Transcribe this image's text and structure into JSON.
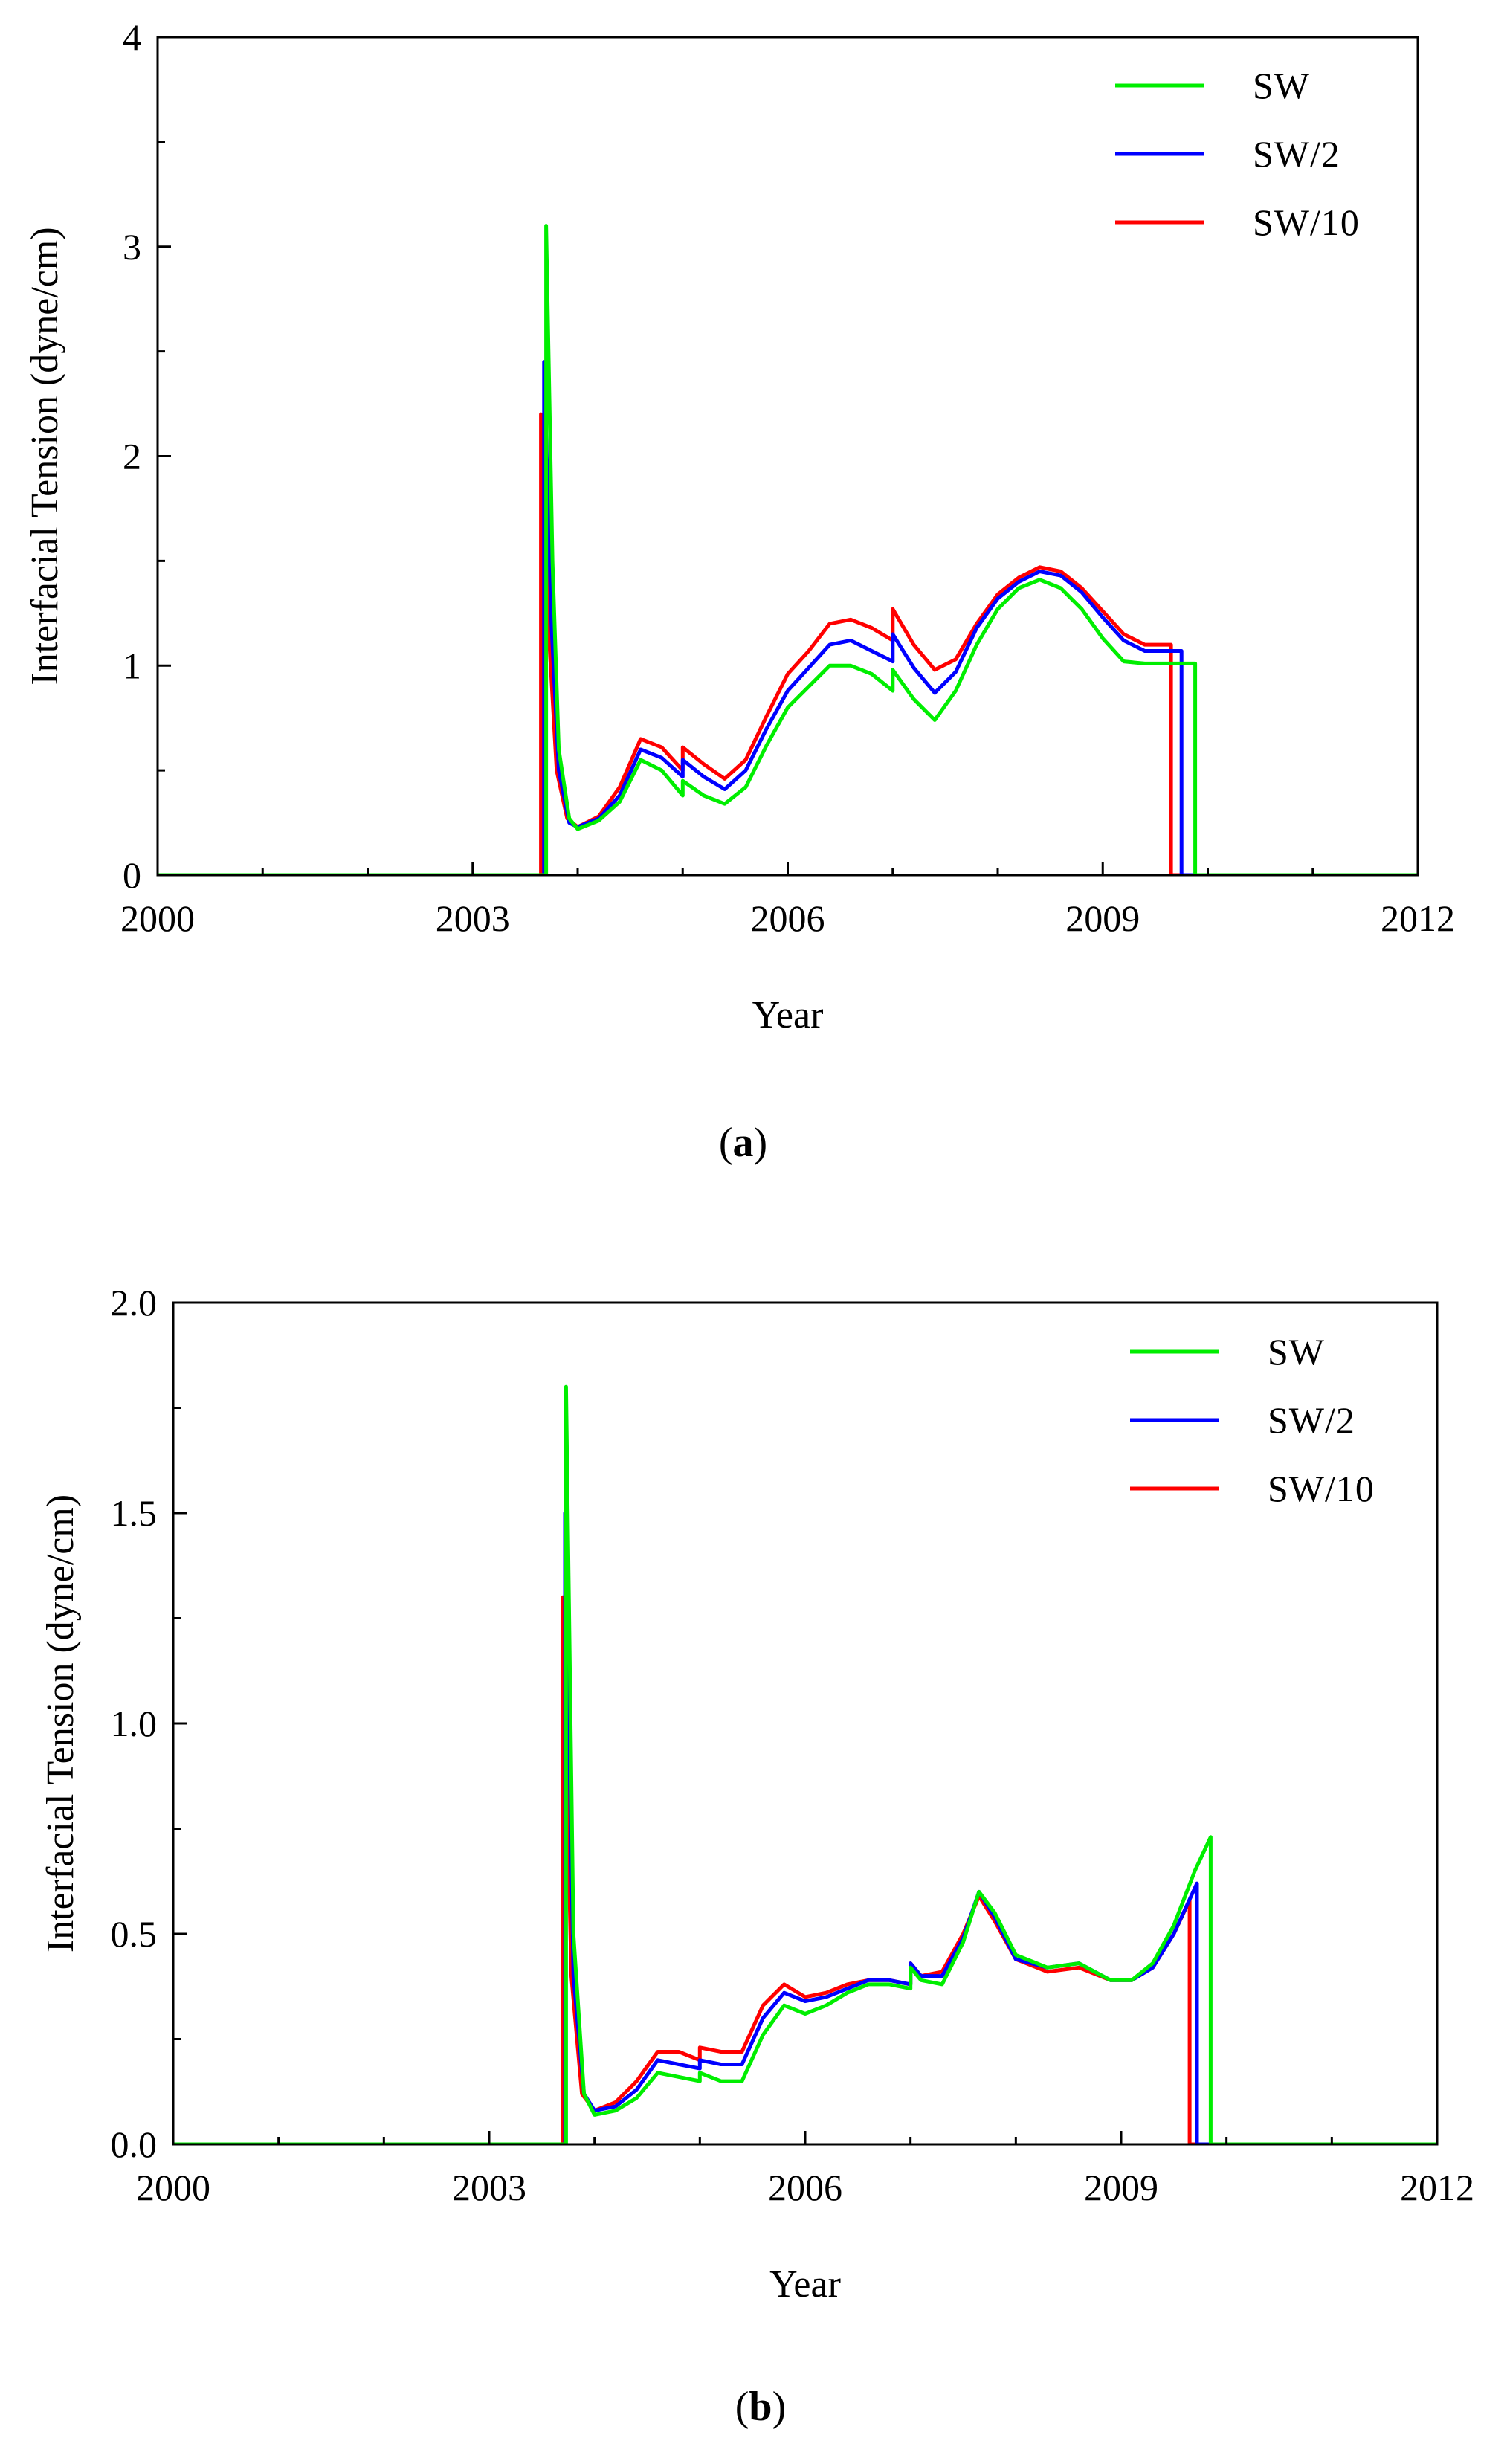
{
  "chart_data": [
    {
      "type": "line",
      "panel_id": "a",
      "panel_label": "(a)",
      "xlabel": "Year",
      "ylabel": "Interfacial Tension (dyne/cm)",
      "xlim": [
        2000,
        2012
      ],
      "ylim": [
        0,
        4
      ],
      "xticks": [
        2000,
        2003,
        2006,
        2009,
        2012
      ],
      "xtick_labels": [
        "2000",
        "2003",
        "2006",
        "2009",
        "2012"
      ],
      "yticks": [
        0,
        1,
        2,
        3,
        4
      ],
      "ytick_labels": [
        "0",
        "1",
        "2",
        "3",
        "4"
      ],
      "legend_position": "top-right",
      "series": [
        {
          "name": "SW/10",
          "color": "#ff0000",
          "points": [
            [
              2000.0,
              0.0
            ],
            [
              2003.65,
              0.0
            ],
            [
              2003.65,
              2.2
            ],
            [
              2003.72,
              1.2
            ],
            [
              2003.8,
              0.5
            ],
            [
              2003.9,
              0.27
            ],
            [
              2004.0,
              0.23
            ],
            [
              2004.2,
              0.28
            ],
            [
              2004.4,
              0.42
            ],
            [
              2004.6,
              0.65
            ],
            [
              2004.8,
              0.61
            ],
            [
              2005.0,
              0.5
            ],
            [
              2005.0,
              0.61
            ],
            [
              2005.2,
              0.53
            ],
            [
              2005.4,
              0.46
            ],
            [
              2005.6,
              0.55
            ],
            [
              2005.8,
              0.76
            ],
            [
              2006.0,
              0.96
            ],
            [
              2006.2,
              1.07
            ],
            [
              2006.4,
              1.2
            ],
            [
              2006.6,
              1.22
            ],
            [
              2006.8,
              1.18
            ],
            [
              2007.0,
              1.12
            ],
            [
              2007.0,
              1.27
            ],
            [
              2007.2,
              1.1
            ],
            [
              2007.4,
              0.98
            ],
            [
              2007.6,
              1.03
            ],
            [
              2007.8,
              1.2
            ],
            [
              2008.0,
              1.34
            ],
            [
              2008.2,
              1.42
            ],
            [
              2008.4,
              1.47
            ],
            [
              2008.6,
              1.45
            ],
            [
              2008.8,
              1.37
            ],
            [
              2009.0,
              1.26
            ],
            [
              2009.2,
              1.15
            ],
            [
              2009.4,
              1.1
            ],
            [
              2009.65,
              1.1
            ],
            [
              2009.65,
              0.0
            ],
            [
              2012.0,
              0.0
            ]
          ]
        },
        {
          "name": "SW/2",
          "color": "#0000ff",
          "points": [
            [
              2000.0,
              0.0
            ],
            [
              2003.68,
              0.0
            ],
            [
              2003.68,
              2.45
            ],
            [
              2003.75,
              1.2
            ],
            [
              2003.82,
              0.5
            ],
            [
              2003.92,
              0.25
            ],
            [
              2004.0,
              0.23
            ],
            [
              2004.2,
              0.27
            ],
            [
              2004.4,
              0.38
            ],
            [
              2004.6,
              0.6
            ],
            [
              2004.8,
              0.56
            ],
            [
              2005.0,
              0.47
            ],
            [
              2005.0,
              0.55
            ],
            [
              2005.2,
              0.47
            ],
            [
              2005.4,
              0.41
            ],
            [
              2005.6,
              0.5
            ],
            [
              2005.8,
              0.7
            ],
            [
              2006.0,
              0.88
            ],
            [
              2006.2,
              0.99
            ],
            [
              2006.4,
              1.1
            ],
            [
              2006.6,
              1.12
            ],
            [
              2006.8,
              1.07
            ],
            [
              2007.0,
              1.02
            ],
            [
              2007.0,
              1.15
            ],
            [
              2007.2,
              0.99
            ],
            [
              2007.4,
              0.87
            ],
            [
              2007.6,
              0.97
            ],
            [
              2007.8,
              1.18
            ],
            [
              2008.0,
              1.32
            ],
            [
              2008.2,
              1.4
            ],
            [
              2008.4,
              1.45
            ],
            [
              2008.6,
              1.43
            ],
            [
              2008.8,
              1.35
            ],
            [
              2009.0,
              1.23
            ],
            [
              2009.2,
              1.12
            ],
            [
              2009.4,
              1.07
            ],
            [
              2009.75,
              1.07
            ],
            [
              2009.75,
              0.0
            ],
            [
              2012.0,
              0.0
            ]
          ]
        },
        {
          "name": "SW",
          "color": "#00ee00",
          "points": [
            [
              2000.0,
              0.0
            ],
            [
              2003.7,
              0.0
            ],
            [
              2003.7,
              3.1
            ],
            [
              2003.76,
              1.5
            ],
            [
              2003.82,
              0.6
            ],
            [
              2003.92,
              0.27
            ],
            [
              2004.0,
              0.22
            ],
            [
              2004.2,
              0.26
            ],
            [
              2004.4,
              0.35
            ],
            [
              2004.6,
              0.55
            ],
            [
              2004.8,
              0.5
            ],
            [
              2005.0,
              0.38
            ],
            [
              2005.0,
              0.45
            ],
            [
              2005.2,
              0.38
            ],
            [
              2005.4,
              0.34
            ],
            [
              2005.6,
              0.42
            ],
            [
              2005.8,
              0.62
            ],
            [
              2006.0,
              0.8
            ],
            [
              2006.2,
              0.9
            ],
            [
              2006.4,
              1.0
            ],
            [
              2006.6,
              1.0
            ],
            [
              2006.8,
              0.96
            ],
            [
              2007.0,
              0.88
            ],
            [
              2007.0,
              0.98
            ],
            [
              2007.2,
              0.84
            ],
            [
              2007.4,
              0.74
            ],
            [
              2007.6,
              0.88
            ],
            [
              2007.8,
              1.1
            ],
            [
              2008.0,
              1.27
            ],
            [
              2008.2,
              1.37
            ],
            [
              2008.4,
              1.41
            ],
            [
              2008.6,
              1.37
            ],
            [
              2008.8,
              1.27
            ],
            [
              2009.0,
              1.13
            ],
            [
              2009.2,
              1.02
            ],
            [
              2009.4,
              1.01
            ],
            [
              2009.88,
              1.01
            ],
            [
              2009.88,
              0.0
            ],
            [
              2012.0,
              0.0
            ]
          ]
        }
      ]
    },
    {
      "type": "line",
      "panel_id": "b",
      "panel_label": "(b)",
      "xlabel": "Year",
      "ylabel": "Interfacial Tension (dyne/cm)",
      "xlim": [
        2000,
        2012
      ],
      "ylim": [
        0.0,
        2.0
      ],
      "xticks": [
        2000,
        2003,
        2006,
        2009,
        2012
      ],
      "xtick_labels": [
        "2000",
        "2003",
        "2006",
        "2009",
        "2012"
      ],
      "yticks": [
        0.0,
        0.5,
        1.0,
        1.5,
        2.0
      ],
      "ytick_labels": [
        "0.0",
        "0.5",
        "1.0",
        "1.5",
        "2.0"
      ],
      "legend_position": "top-right",
      "series": [
        {
          "name": "SW/10",
          "color": "#ff0000",
          "points": [
            [
              2000.0,
              0.0
            ],
            [
              2003.7,
              0.0
            ],
            [
              2003.7,
              1.3
            ],
            [
              2003.78,
              0.4
            ],
            [
              2003.88,
              0.12
            ],
            [
              2004.0,
              0.08
            ],
            [
              2004.2,
              0.1
            ],
            [
              2004.4,
              0.15
            ],
            [
              2004.6,
              0.22
            ],
            [
              2004.8,
              0.22
            ],
            [
              2005.0,
              0.2
            ],
            [
              2005.0,
              0.23
            ],
            [
              2005.2,
              0.22
            ],
            [
              2005.4,
              0.22
            ],
            [
              2005.6,
              0.33
            ],
            [
              2005.8,
              0.38
            ],
            [
              2006.0,
              0.35
            ],
            [
              2006.2,
              0.36
            ],
            [
              2006.4,
              0.38
            ],
            [
              2006.6,
              0.39
            ],
            [
              2006.8,
              0.39
            ],
            [
              2007.0,
              0.38
            ],
            [
              2007.0,
              0.43
            ],
            [
              2007.1,
              0.4
            ],
            [
              2007.3,
              0.41
            ],
            [
              2007.5,
              0.5
            ],
            [
              2007.65,
              0.59
            ],
            [
              2007.8,
              0.53
            ],
            [
              2008.0,
              0.44
            ],
            [
              2008.3,
              0.41
            ],
            [
              2008.6,
              0.42
            ],
            [
              2008.9,
              0.39
            ],
            [
              2009.1,
              0.39
            ],
            [
              2009.3,
              0.42
            ],
            [
              2009.5,
              0.5
            ],
            [
              2009.65,
              0.58
            ],
            [
              2009.65,
              0.0
            ],
            [
              2012.0,
              0.0
            ]
          ]
        },
        {
          "name": "SW/2",
          "color": "#0000ff",
          "points": [
            [
              2000.0,
              0.0
            ],
            [
              2003.72,
              0.0
            ],
            [
              2003.72,
              1.5
            ],
            [
              2003.8,
              0.4
            ],
            [
              2003.9,
              0.12
            ],
            [
              2004.0,
              0.08
            ],
            [
              2004.2,
              0.09
            ],
            [
              2004.4,
              0.13
            ],
            [
              2004.6,
              0.2
            ],
            [
              2004.8,
              0.19
            ],
            [
              2005.0,
              0.18
            ],
            [
              2005.0,
              0.2
            ],
            [
              2005.2,
              0.19
            ],
            [
              2005.4,
              0.19
            ],
            [
              2005.6,
              0.3
            ],
            [
              2005.8,
              0.36
            ],
            [
              2006.0,
              0.34
            ],
            [
              2006.2,
              0.35
            ],
            [
              2006.4,
              0.37
            ],
            [
              2006.6,
              0.39
            ],
            [
              2006.8,
              0.39
            ],
            [
              2007.0,
              0.38
            ],
            [
              2007.0,
              0.43
            ],
            [
              2007.1,
              0.4
            ],
            [
              2007.3,
              0.4
            ],
            [
              2007.5,
              0.49
            ],
            [
              2007.65,
              0.6
            ],
            [
              2007.8,
              0.54
            ],
            [
              2008.0,
              0.44
            ],
            [
              2008.3,
              0.42
            ],
            [
              2008.6,
              0.43
            ],
            [
              2008.9,
              0.39
            ],
            [
              2009.1,
              0.39
            ],
            [
              2009.3,
              0.42
            ],
            [
              2009.5,
              0.5
            ],
            [
              2009.72,
              0.62
            ],
            [
              2009.72,
              0.0
            ],
            [
              2012.0,
              0.0
            ]
          ]
        },
        {
          "name": "SW",
          "color": "#00ee00",
          "points": [
            [
              2000.0,
              0.0
            ],
            [
              2003.73,
              0.0
            ],
            [
              2003.73,
              1.8
            ],
            [
              2003.8,
              0.5
            ],
            [
              2003.9,
              0.12
            ],
            [
              2004.0,
              0.07
            ],
            [
              2004.2,
              0.08
            ],
            [
              2004.4,
              0.11
            ],
            [
              2004.6,
              0.17
            ],
            [
              2004.8,
              0.16
            ],
            [
              2005.0,
              0.15
            ],
            [
              2005.0,
              0.17
            ],
            [
              2005.2,
              0.15
            ],
            [
              2005.4,
              0.15
            ],
            [
              2005.6,
              0.26
            ],
            [
              2005.8,
              0.33
            ],
            [
              2006.0,
              0.31
            ],
            [
              2006.2,
              0.33
            ],
            [
              2006.4,
              0.36
            ],
            [
              2006.6,
              0.38
            ],
            [
              2006.8,
              0.38
            ],
            [
              2007.0,
              0.37
            ],
            [
              2007.0,
              0.42
            ],
            [
              2007.1,
              0.39
            ],
            [
              2007.3,
              0.38
            ],
            [
              2007.5,
              0.48
            ],
            [
              2007.65,
              0.6
            ],
            [
              2007.8,
              0.55
            ],
            [
              2008.0,
              0.45
            ],
            [
              2008.3,
              0.42
            ],
            [
              2008.6,
              0.43
            ],
            [
              2008.9,
              0.39
            ],
            [
              2009.1,
              0.39
            ],
            [
              2009.3,
              0.43
            ],
            [
              2009.5,
              0.52
            ],
            [
              2009.7,
              0.65
            ],
            [
              2009.85,
              0.73
            ],
            [
              2009.85,
              0.0
            ],
            [
              2012.0,
              0.0
            ]
          ]
        }
      ]
    }
  ],
  "legend_order": [
    "SW",
    "SW/2",
    "SW/10"
  ]
}
